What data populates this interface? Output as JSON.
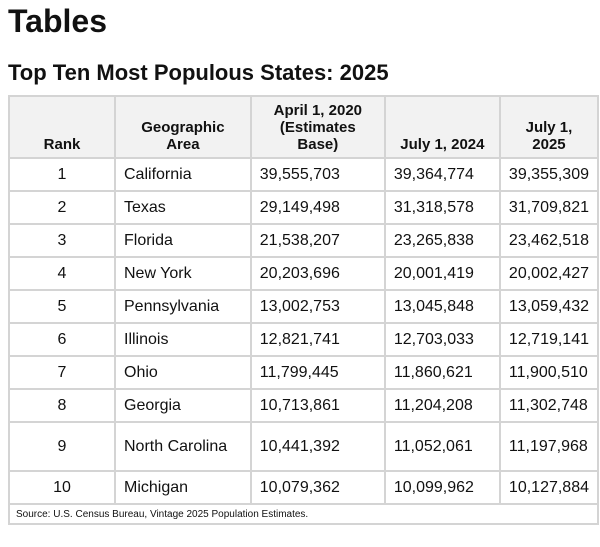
{
  "title": "Tables",
  "subtitle": "Top Ten Most Populous States: 2025",
  "table": {
    "headers": [
      "Rank",
      "Geographic Area",
      "April 1, 2020 (Estimates Base)",
      "July 1, 2024",
      "July 1, 2025"
    ],
    "rows": [
      [
        "1",
        "California",
        "39,555,703",
        "39,364,774",
        "39,355,309"
      ],
      [
        "2",
        "Texas",
        "29,149,498",
        "31,318,578",
        "31,709,821"
      ],
      [
        "3",
        "Florida",
        "21,538,207",
        "23,265,838",
        "23,462,518"
      ],
      [
        "4",
        "New York",
        "20,203,696",
        "20,001,419",
        "20,002,427"
      ],
      [
        "5",
        "Pennsylvania",
        "13,002,753",
        "13,045,848",
        "13,059,432"
      ],
      [
        "6",
        "Illinois",
        "12,821,741",
        "12,703,033",
        "12,719,141"
      ],
      [
        "7",
        "Ohio",
        "11,799,445",
        "11,860,621",
        "11,900,510"
      ],
      [
        "8",
        "Georgia",
        "10,713,861",
        "11,204,208",
        "11,302,748"
      ],
      [
        "9",
        "North Carolina",
        "10,441,392",
        "11,052,061",
        "11,197,968"
      ],
      [
        "10",
        "Michigan",
        "10,079,362",
        "10,099,962",
        "10,127,884"
      ]
    ],
    "source": "Source: U.S. Census Bureau, Vintage 2025 Population Estimates."
  }
}
